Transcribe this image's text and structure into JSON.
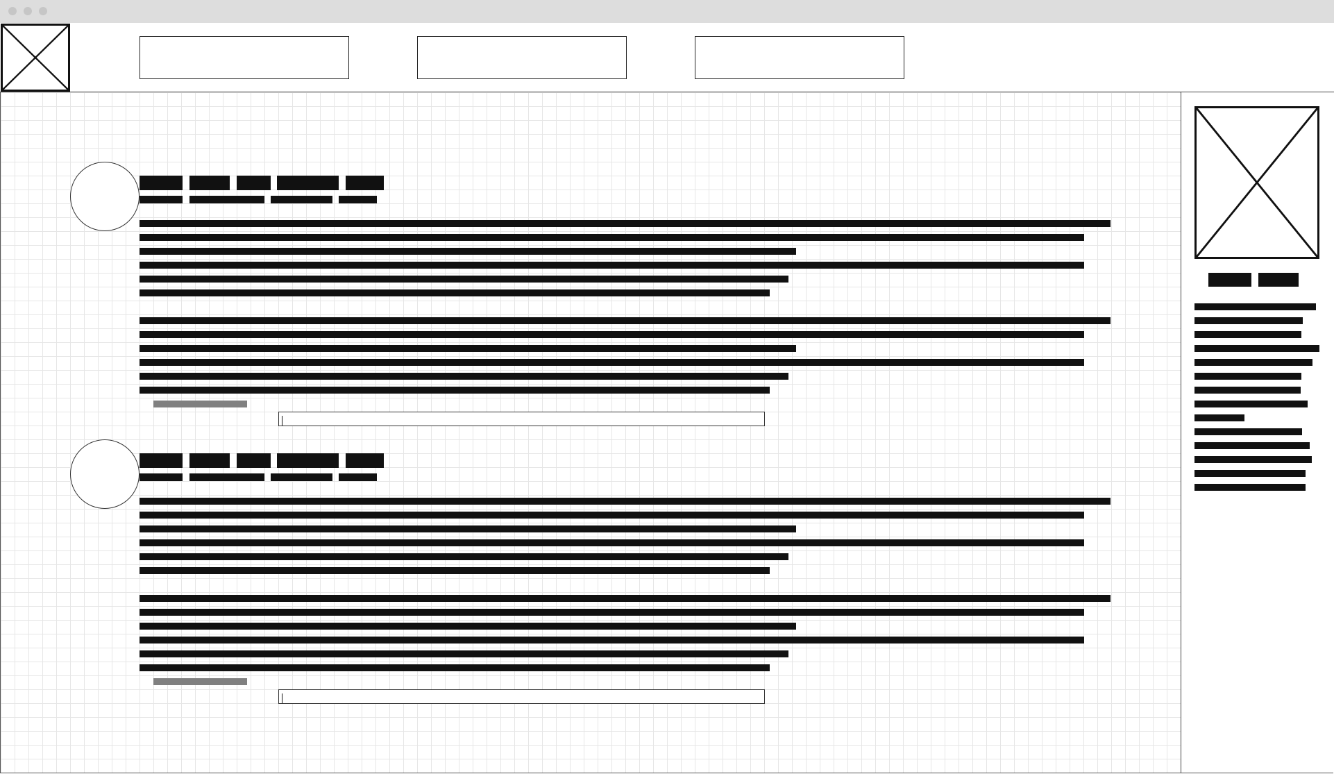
{
  "window": {
    "traffic_lights": [
      "close-dot",
      "minimize-dot",
      "zoom-dot"
    ]
  },
  "header": {
    "logo_icon": "image-placeholder-icon",
    "nav_boxes": [
      "",
      "",
      ""
    ]
  },
  "posts": [
    {
      "avatar": "avatar-placeholder",
      "author_tags": 5,
      "meta_items": 4,
      "paragraphs": [
        6,
        6
      ],
      "link_color": "#808080",
      "reply_value": ""
    },
    {
      "avatar": "avatar-placeholder",
      "author_tags": 5,
      "meta_items": 4,
      "paragraphs": [
        6,
        6
      ],
      "link_color": "#808080",
      "reply_value": ""
    }
  ],
  "sidebar": {
    "image_icon": "image-placeholder-icon",
    "tags": 2,
    "lines": 14
  },
  "colors": {
    "ink": "#111111",
    "grid": "#e6e6e6",
    "titlebar": "#dddddd",
    "muted": "#808080"
  }
}
